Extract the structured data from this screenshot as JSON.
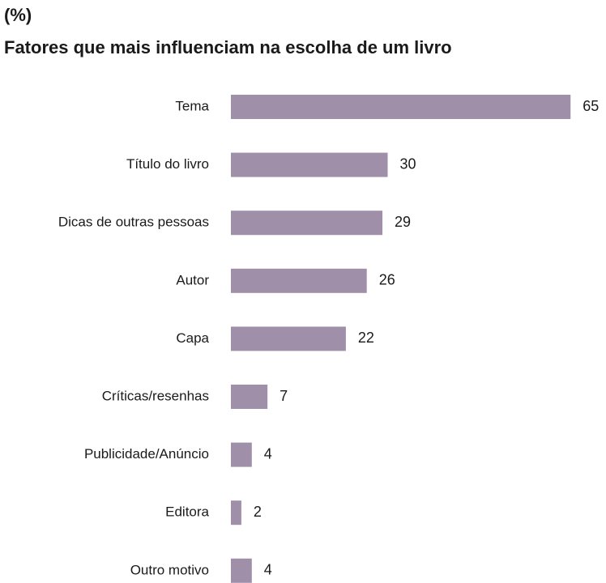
{
  "chart_data": {
    "type": "barh",
    "subtitle": "(%)",
    "title": "Fatores que mais influenciam na escolha de um livro",
    "categories": [
      "Tema",
      "Título do livro",
      "Dicas de outras pessoas",
      "Autor",
      "Capa",
      "Críticas/resenhas",
      "Publicidade/Anúncio",
      "Editora",
      "Outro motivo"
    ],
    "values": [
      65,
      30,
      29,
      26,
      22,
      7,
      4,
      2,
      4
    ],
    "color": "#a08fa8"
  }
}
